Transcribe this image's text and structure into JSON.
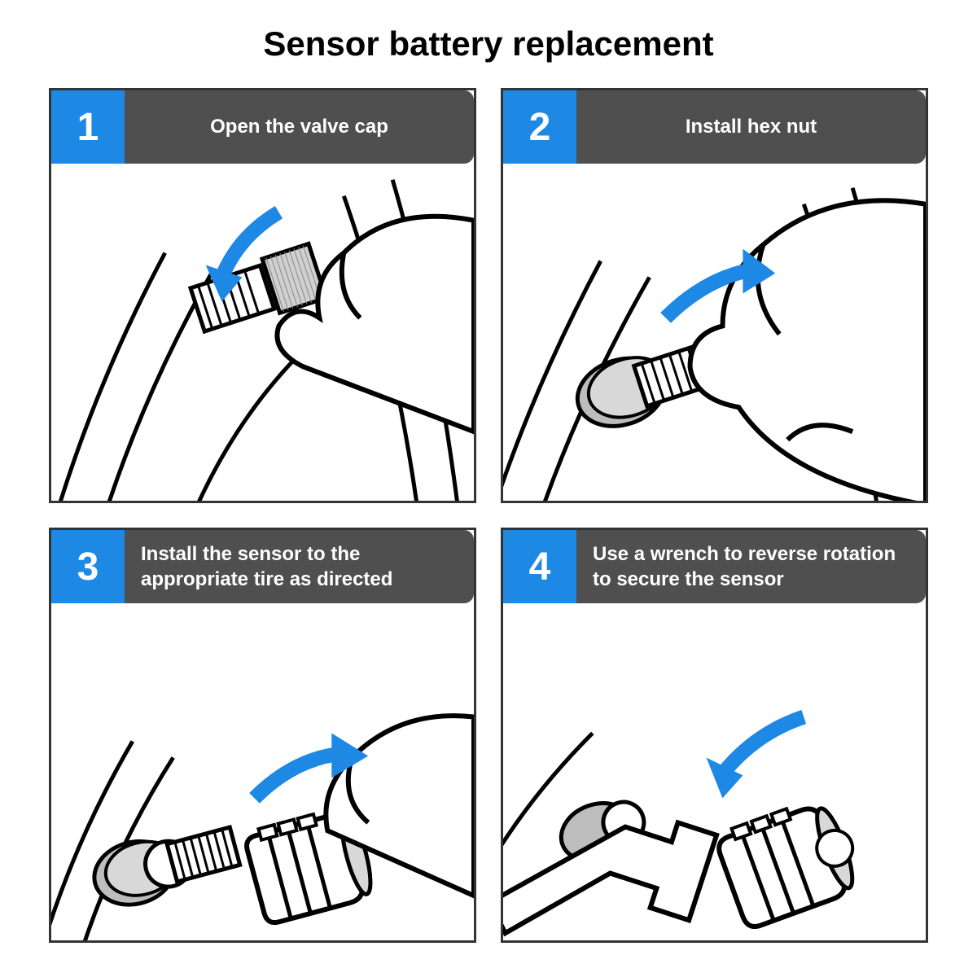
{
  "title": "Sensor battery replacement",
  "title_fontsize": 42,
  "title_color": "#000000",
  "colors": {
    "num_bg": "#1e88e5",
    "caption_bg": "#4f4f4f",
    "arrow": "#1e88e5",
    "border": "#333333",
    "line": "#000000",
    "shade": "#d0d0d0"
  },
  "num_box": {
    "width": 90,
    "height": 90,
    "fontsize": 48
  },
  "caption_fontsize": 24,
  "steps": [
    {
      "num": "1",
      "caption": "Open the valve cap",
      "caption_align": "center"
    },
    {
      "num": "2",
      "caption": "Install hex nut",
      "caption_align": "center"
    },
    {
      "num": "3",
      "caption": "Install the sensor to the appropriate tire as directed",
      "caption_align": "left"
    },
    {
      "num": "4",
      "caption": "Use a wrench to reverse rotation to secure the sensor",
      "caption_align": "left"
    }
  ]
}
